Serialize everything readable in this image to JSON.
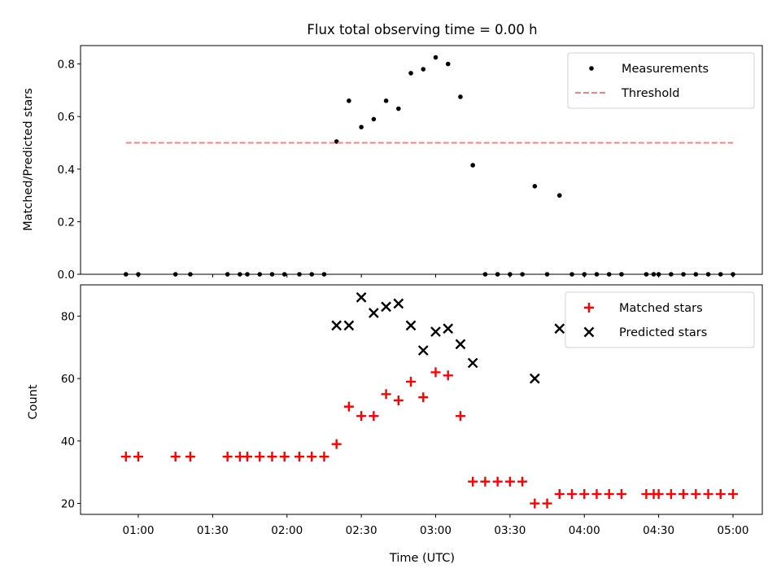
{
  "chart_data": {
    "title": "Flux total observing time = 0.00 h",
    "xlabel": "Time (UTC)",
    "x_ticks": [
      "01:00",
      "01:30",
      "02:00",
      "02:30",
      "03:00",
      "03:30",
      "04:00",
      "04:30",
      "05:00"
    ],
    "colors": {
      "measurements": "#000000",
      "threshold": "#ff7f7f",
      "matched": "#ff0000",
      "predicted": "#000000"
    },
    "panels": [
      {
        "type": "scatter",
        "ylabel": "Matched/Predicted stars",
        "ylim": [
          0,
          0.87
        ],
        "y_ticks": [
          "0.0",
          "0.2",
          "0.4",
          "0.6",
          "0.8"
        ],
        "legend_position": "top-right",
        "series": [
          {
            "name": "Measurements",
            "marker": "dot",
            "points": [
              [
                "00:55",
                0
              ],
              [
                "01:00",
                0
              ],
              [
                "01:15",
                0
              ],
              [
                "01:21",
                0
              ],
              [
                "01:36",
                0
              ],
              [
                "01:41",
                0
              ],
              [
                "01:44",
                0
              ],
              [
                "01:49",
                0
              ],
              [
                "01:54",
                0
              ],
              [
                "01:59",
                0
              ],
              [
                "02:05",
                0
              ],
              [
                "02:10",
                0
              ],
              [
                "02:15",
                0
              ],
              [
                "02:20",
                0.505
              ],
              [
                "02:25",
                0.66
              ],
              [
                "02:30",
                0.56
              ],
              [
                "02:35",
                0.59
              ],
              [
                "02:40",
                0.66
              ],
              [
                "02:45",
                0.63
              ],
              [
                "02:50",
                0.765
              ],
              [
                "02:55",
                0.78
              ],
              [
                "03:00",
                0.825
              ],
              [
                "03:05",
                0.8
              ],
              [
                "03:10",
                0.675
              ],
              [
                "03:15",
                0.415
              ],
              [
                "03:20",
                0
              ],
              [
                "03:25",
                0
              ],
              [
                "03:30",
                0
              ],
              [
                "03:35",
                0
              ],
              [
                "03:40",
                0.335
              ],
              [
                "03:45",
                0
              ],
              [
                "03:50",
                0.3
              ],
              [
                "03:55",
                0
              ],
              [
                "04:00",
                0
              ],
              [
                "04:05",
                0
              ],
              [
                "04:10",
                0
              ],
              [
                "04:15",
                0
              ],
              [
                "04:25",
                0
              ],
              [
                "04:28",
                0
              ],
              [
                "04:30",
                0
              ],
              [
                "04:35",
                0
              ],
              [
                "04:40",
                0
              ],
              [
                "04:45",
                0
              ],
              [
                "04:50",
                0
              ],
              [
                "04:55",
                0
              ],
              [
                "05:00",
                0
              ]
            ]
          },
          {
            "name": "Threshold",
            "marker": "dashed-line",
            "points": [
              [
                "00:55",
                0.5
              ],
              [
                "05:00",
                0.5
              ]
            ]
          }
        ]
      },
      {
        "type": "scatter",
        "ylabel": "Count",
        "ylim": [
          16.5,
          90
        ],
        "y_ticks": [
          "20",
          "40",
          "60",
          "80"
        ],
        "legend_position": "top-right",
        "series": [
          {
            "name": "Matched stars",
            "marker": "plus",
            "points": [
              [
                "00:55",
                35
              ],
              [
                "01:00",
                35
              ],
              [
                "01:15",
                35
              ],
              [
                "01:21",
                35
              ],
              [
                "01:36",
                35
              ],
              [
                "01:41",
                35
              ],
              [
                "01:44",
                35
              ],
              [
                "01:49",
                35
              ],
              [
                "01:54",
                35
              ],
              [
                "01:59",
                35
              ],
              [
                "02:05",
                35
              ],
              [
                "02:10",
                35
              ],
              [
                "02:15",
                35
              ],
              [
                "02:20",
                39
              ],
              [
                "02:25",
                51
              ],
              [
                "02:30",
                48
              ],
              [
                "02:35",
                48
              ],
              [
                "02:40",
                55
              ],
              [
                "02:45",
                53
              ],
              [
                "02:50",
                59
              ],
              [
                "02:55",
                54
              ],
              [
                "03:00",
                62
              ],
              [
                "03:05",
                61
              ],
              [
                "03:10",
                48
              ],
              [
                "03:15",
                27
              ],
              [
                "03:20",
                27
              ],
              [
                "03:25",
                27
              ],
              [
                "03:30",
                27
              ],
              [
                "03:35",
                27
              ],
              [
                "03:40",
                20
              ],
              [
                "03:45",
                20
              ],
              [
                "03:50",
                23
              ],
              [
                "03:55",
                23
              ],
              [
                "04:00",
                23
              ],
              [
                "04:05",
                23
              ],
              [
                "04:10",
                23
              ],
              [
                "04:15",
                23
              ],
              [
                "04:25",
                23
              ],
              [
                "04:28",
                23
              ],
              [
                "04:30",
                23
              ],
              [
                "04:35",
                23
              ],
              [
                "04:40",
                23
              ],
              [
                "04:45",
                23
              ],
              [
                "04:50",
                23
              ],
              [
                "04:55",
                23
              ],
              [
                "05:00",
                23
              ]
            ]
          },
          {
            "name": "Predicted stars",
            "marker": "x",
            "points": [
              [
                "02:20",
                77
              ],
              [
                "02:25",
                77
              ],
              [
                "02:30",
                86
              ],
              [
                "02:35",
                81
              ],
              [
                "02:40",
                83
              ],
              [
                "02:45",
                84
              ],
              [
                "02:50",
                77
              ],
              [
                "02:55",
                69
              ],
              [
                "03:00",
                75
              ],
              [
                "03:05",
                76
              ],
              [
                "03:10",
                71
              ],
              [
                "03:15",
                65
              ],
              [
                "03:40",
                60
              ],
              [
                "03:50",
                76
              ]
            ]
          }
        ]
      }
    ]
  }
}
